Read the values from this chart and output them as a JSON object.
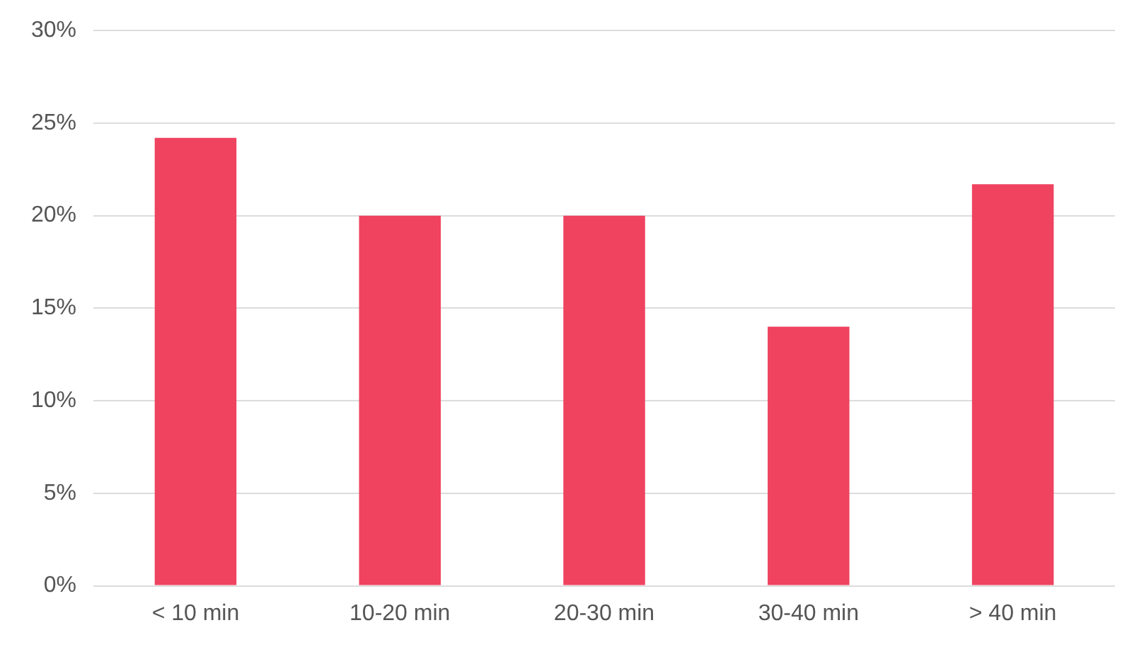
{
  "chart_data": {
    "type": "bar",
    "categories": [
      "< 10 min",
      "10-20 min",
      "20-30 min",
      "30-40 min",
      "> 40 min"
    ],
    "values": [
      24.2,
      20.0,
      20.0,
      14.0,
      21.7
    ],
    "color": "#ef4360",
    "ylim": [
      0,
      30
    ],
    "yticks": [
      {
        "value": 0,
        "label": "0%"
      },
      {
        "value": 5,
        "label": "5%"
      },
      {
        "value": 10,
        "label": "10%"
      },
      {
        "value": 15,
        "label": "15%"
      },
      {
        "value": 20,
        "label": "20%"
      },
      {
        "value": 25,
        "label": "25%"
      },
      {
        "value": 30,
        "label": "30%"
      }
    ],
    "grid": "y"
  }
}
